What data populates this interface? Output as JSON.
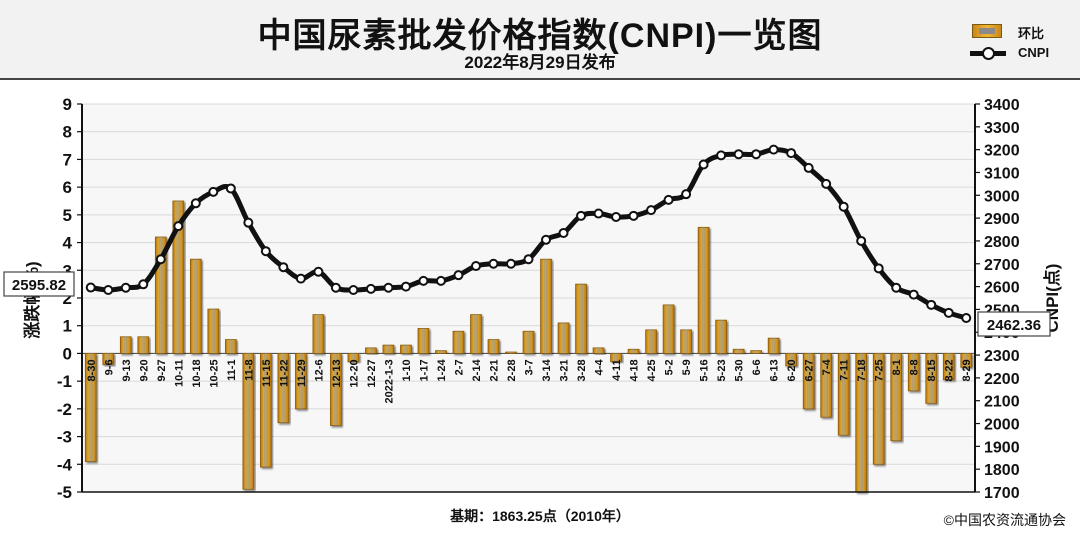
{
  "title": "中国尿素批发价格指数(CNPI)一览图",
  "subtitle": "2022年8月29日发布",
  "legend": {
    "bar_label": "环比",
    "line_label": "CNPI"
  },
  "footer": {
    "base": "基期：1863.25点（2010年）",
    "copyright": "©中国农资流通协会"
  },
  "colors": {
    "bar": "#f2b733",
    "bar_dark": "#c8871c",
    "line": "#111111",
    "grid": "#d9d9d9",
    "plot_bg": "#fafafa"
  },
  "chart_data": {
    "type": "bar+line",
    "title": "中国尿素批发价格指数(CNPI)一览图",
    "ylabel_left": "涨跌幅(%)",
    "ylabel_right": "CNPI(点)",
    "ylim_left": [
      -5,
      9
    ],
    "ylim_right": [
      1700,
      3400
    ],
    "yticks_left": [
      -5,
      -4,
      -3,
      -2,
      -1,
      0,
      1,
      2,
      3,
      4,
      5,
      6,
      7,
      8,
      9
    ],
    "yticks_right": [
      1700,
      1800,
      1900,
      2000,
      2100,
      2200,
      2300,
      2400,
      2500,
      2600,
      2700,
      2800,
      2900,
      3000,
      3100,
      3200,
      3300,
      3400
    ],
    "grid": true,
    "legend_position": "top-right",
    "first_value_label": "2595.82",
    "last_value_label": "2462.36",
    "categories": [
      "8-30",
      "9-6",
      "9-13",
      "9-20",
      "9-27",
      "10-11",
      "10-18",
      "10-25",
      "11-1",
      "11-8",
      "11-15",
      "11-22",
      "11-29",
      "12-6",
      "12-13",
      "12-20",
      "12-27",
      "2022-1-3",
      "1-10",
      "1-17",
      "1-24",
      "2-7",
      "2-14",
      "2-21",
      "2-28",
      "3-7",
      "3-14",
      "3-21",
      "3-28",
      "4-4",
      "4-11",
      "4-18",
      "4-25",
      "5-2",
      "5-9",
      "5-16",
      "5-23",
      "5-30",
      "6-6",
      "6-13",
      "6-20",
      "6-27",
      "7-4",
      "7-11",
      "7-18",
      "7-25",
      "8-1",
      "8-8",
      "8-15",
      "8-22",
      "8-29"
    ],
    "series": [
      {
        "name": "环比",
        "axis": "left",
        "type": "bar",
        "values": [
          -3.9,
          -0.4,
          0.6,
          0.6,
          4.2,
          5.5,
          3.4,
          1.6,
          0.5,
          -4.9,
          -4.1,
          -2.5,
          -2.0,
          1.4,
          -2.6,
          -0.3,
          0.2,
          0.3,
          0.3,
          0.9,
          0.1,
          0.8,
          1.4,
          0.5,
          0.05,
          0.8,
          3.4,
          1.1,
          2.5,
          0.2,
          -0.3,
          0.15,
          0.85,
          1.75,
          0.85,
          4.55,
          1.2,
          0.15,
          0.1,
          0.55,
          -0.45,
          -2.0,
          -2.3,
          -2.95,
          -5.0,
          -4.0,
          -3.15,
          -1.35,
          -1.8,
          -0.95,
          -0.5
        ]
      },
      {
        "name": "CNPI",
        "axis": "right",
        "type": "line",
        "values": [
          2595.82,
          2585,
          2595,
          2610,
          2720,
          2865,
          2965,
          3015,
          3030,
          2880,
          2755,
          2685,
          2635,
          2665,
          2595,
          2585,
          2590,
          2595,
          2600,
          2625,
          2625,
          2650,
          2690,
          2700,
          2700,
          2720,
          2805,
          2835,
          2910,
          2920,
          2905,
          2910,
          2935,
          2980,
          3005,
          3135,
          3175,
          3180,
          3180,
          3200,
          3185,
          3120,
          3050,
          2950,
          2800,
          2680,
          2595,
          2565,
          2520,
          2485,
          2462.36
        ]
      }
    ]
  }
}
